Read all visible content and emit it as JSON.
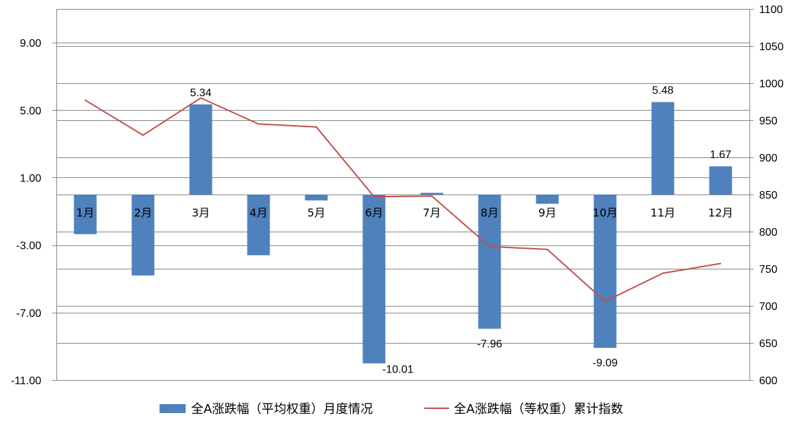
{
  "chart_data": {
    "type": "bar",
    "categories": [
      "1月",
      "2月",
      "3月",
      "4月",
      "5月",
      "6月",
      "7月",
      "8月",
      "9月",
      "10月",
      "11月",
      "12月"
    ],
    "series": [
      {
        "name": "全A涨跌幅（平均权重）月度情况",
        "type": "bar",
        "axis": "left",
        "color": "#4F81BD",
        "values": [
          -2.35,
          -4.8,
          5.34,
          -3.6,
          -0.35,
          -10.01,
          0.1,
          -7.96,
          -0.55,
          -9.09,
          5.48,
          1.67
        ],
        "labels": [
          "",
          "",
          "5.34",
          "",
          "",
          "-10.01",
          "",
          "-7.96",
          "",
          "-9.09",
          "5.48",
          "1.67"
        ]
      },
      {
        "name": "全A涨跌幅（等权重）累计指数",
        "type": "line",
        "axis": "right",
        "color": "#C0504D",
        "values": [
          977,
          930,
          980,
          945,
          941,
          847,
          848,
          780,
          776,
          706,
          744,
          757
        ]
      }
    ],
    "y_left": {
      "ticks": [
        9,
        5,
        1,
        -3,
        -7,
        -11
      ],
      "tick_labels": [
        "9.00",
        "5.00",
        "1.00",
        "-3.00",
        "-7.00",
        "-11.00"
      ],
      "ylim": [
        -11,
        11
      ]
    },
    "y_right": {
      "ticks": [
        600,
        650,
        700,
        750,
        800,
        850,
        900,
        950,
        1000,
        1050,
        1100
      ],
      "tick_labels": [
        "600",
        "650",
        "700",
        "750",
        "800",
        "850",
        "900",
        "950",
        "1000",
        "1050",
        "1100"
      ],
      "ylim": [
        600,
        1100
      ]
    },
    "grid": true,
    "legend_position": "bottom"
  }
}
